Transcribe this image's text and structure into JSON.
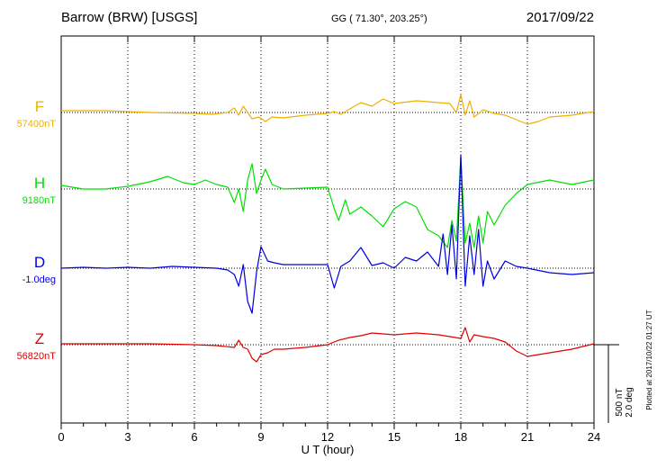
{
  "header": {
    "station": "Barrow (BRW)  [USGS]",
    "coords": "GG ( 71.30°, 203.25°)",
    "date": "2017/09/22"
  },
  "footer": {
    "plotted": "Plotted at 2017/10/22 01:27 UT"
  },
  "colors": {
    "F": "#f0b000",
    "H": "#00e000",
    "D": "#0000dd",
    "Z": "#e00000"
  },
  "chart_data": {
    "type": "line",
    "xlabel": "U T (hour)",
    "xlim": [
      0,
      24
    ],
    "x_ticks": [
      0,
      3,
      6,
      9,
      12,
      15,
      18,
      21,
      24
    ],
    "scale": {
      "nt": "500 nT",
      "deg": "2.0 deg"
    },
    "grid": true,
    "series": [
      {
        "name": "F",
        "base": "57400nT",
        "points": [
          [
            0,
            123
          ],
          [
            2,
            123
          ],
          [
            4,
            125
          ],
          [
            6,
            126
          ],
          [
            6.8,
            127
          ],
          [
            7.5,
            125
          ],
          [
            7.8,
            120
          ],
          [
            8,
            128
          ],
          [
            8.2,
            118
          ],
          [
            8.4,
            125
          ],
          [
            8.6,
            132
          ],
          [
            8.9,
            130
          ],
          [
            9.2,
            135
          ],
          [
            9.5,
            130
          ],
          [
            10,
            131
          ],
          [
            11,
            128
          ],
          [
            12,
            126
          ],
          [
            12.3,
            124
          ],
          [
            12.6,
            127
          ],
          [
            13,
            121
          ],
          [
            13.5,
            114
          ],
          [
            14,
            118
          ],
          [
            14.5,
            110
          ],
          [
            15,
            115
          ],
          [
            16,
            112
          ],
          [
            17,
            114
          ],
          [
            17.5,
            115
          ],
          [
            17.8,
            125
          ],
          [
            18,
            105
          ],
          [
            18.2,
            128
          ],
          [
            18.4,
            112
          ],
          [
            18.6,
            130
          ],
          [
            19,
            122
          ],
          [
            19.5,
            126
          ],
          [
            20,
            128
          ],
          [
            20.5,
            133
          ],
          [
            21,
            138
          ],
          [
            21.5,
            135
          ],
          [
            22,
            130
          ],
          [
            23,
            128
          ],
          [
            24,
            124
          ]
        ]
      },
      {
        "name": "H",
        "base": "9180nT",
        "points": [
          [
            0,
            206
          ],
          [
            1,
            210
          ],
          [
            2,
            210
          ],
          [
            3,
            207
          ],
          [
            4,
            202
          ],
          [
            4.8,
            196
          ],
          [
            5.5,
            203
          ],
          [
            6,
            205
          ],
          [
            6.5,
            200
          ],
          [
            7,
            205
          ],
          [
            7.5,
            208
          ],
          [
            7.8,
            225
          ],
          [
            8,
            210
          ],
          [
            8.2,
            235
          ],
          [
            8.4,
            200
          ],
          [
            8.6,
            182
          ],
          [
            8.8,
            215
          ],
          [
            9,
            200
          ],
          [
            9.2,
            188
          ],
          [
            9.5,
            205
          ],
          [
            10,
            210
          ],
          [
            11,
            209
          ],
          [
            12,
            208
          ],
          [
            12.3,
            232
          ],
          [
            12.5,
            245
          ],
          [
            12.8,
            222
          ],
          [
            13,
            238
          ],
          [
            13.5,
            230
          ],
          [
            14,
            240
          ],
          [
            14.5,
            252
          ],
          [
            15,
            232
          ],
          [
            15.5,
            224
          ],
          [
            16,
            230
          ],
          [
            16.5,
            255
          ],
          [
            17,
            262
          ],
          [
            17.4,
            275
          ],
          [
            17.6,
            245
          ],
          [
            17.8,
            268
          ],
          [
            18,
            175
          ],
          [
            18.2,
            270
          ],
          [
            18.4,
            248
          ],
          [
            18.6,
            275
          ],
          [
            18.8,
            240
          ],
          [
            19,
            270
          ],
          [
            19.2,
            235
          ],
          [
            19.5,
            250
          ],
          [
            20,
            228
          ],
          [
            20.5,
            215
          ],
          [
            21,
            205
          ],
          [
            22,
            200
          ],
          [
            23,
            205
          ],
          [
            24,
            200
          ]
        ]
      },
      {
        "name": "D",
        "base": "-1.0deg",
        "points": [
          [
            0,
            298
          ],
          [
            1,
            297
          ],
          [
            2,
            298
          ],
          [
            3,
            297
          ],
          [
            4,
            298
          ],
          [
            5,
            296
          ],
          [
            6,
            297
          ],
          [
            7,
            298
          ],
          [
            7.5,
            300
          ],
          [
            7.8,
            305
          ],
          [
            8,
            318
          ],
          [
            8.2,
            294
          ],
          [
            8.4,
            335
          ],
          [
            8.6,
            348
          ],
          [
            8.8,
            302
          ],
          [
            9,
            274
          ],
          [
            9.3,
            290
          ],
          [
            9.6,
            292
          ],
          [
            10,
            294
          ],
          [
            11,
            294
          ],
          [
            12,
            294
          ],
          [
            12.3,
            320
          ],
          [
            12.6,
            296
          ],
          [
            13,
            290
          ],
          [
            13.5,
            275
          ],
          [
            14,
            295
          ],
          [
            14.5,
            292
          ],
          [
            15,
            298
          ],
          [
            15.5,
            286
          ],
          [
            16,
            290
          ],
          [
            16.5,
            280
          ],
          [
            17,
            296
          ],
          [
            17.2,
            260
          ],
          [
            17.4,
            305
          ],
          [
            17.6,
            250
          ],
          [
            17.8,
            310
          ],
          [
            18,
            172
          ],
          [
            18.2,
            318
          ],
          [
            18.4,
            262
          ],
          [
            18.6,
            305
          ],
          [
            18.8,
            255
          ],
          [
            19,
            318
          ],
          [
            19.2,
            290
          ],
          [
            19.5,
            310
          ],
          [
            20,
            290
          ],
          [
            20.5,
            296
          ],
          [
            21,
            298
          ],
          [
            22,
            303
          ],
          [
            23,
            305
          ],
          [
            24,
            303
          ]
        ]
      },
      {
        "name": "Z",
        "base": "56820nT",
        "points": [
          [
            0,
            382
          ],
          [
            2,
            382
          ],
          [
            4,
            382
          ],
          [
            6,
            383
          ],
          [
            7,
            384
          ],
          [
            7.8,
            386
          ],
          [
            8,
            378
          ],
          [
            8.2,
            386
          ],
          [
            8.4,
            388
          ],
          [
            8.6,
            398
          ],
          [
            8.8,
            402
          ],
          [
            9,
            394
          ],
          [
            9.3,
            392
          ],
          [
            9.6,
            388
          ],
          [
            10,
            388
          ],
          [
            11,
            386
          ],
          [
            12,
            383
          ],
          [
            12.5,
            378
          ],
          [
            13,
            375
          ],
          [
            13.5,
            373
          ],
          [
            14,
            370
          ],
          [
            15,
            372
          ],
          [
            16,
            370
          ],
          [
            17,
            372
          ],
          [
            17.5,
            374
          ],
          [
            18,
            376
          ],
          [
            18.2,
            364
          ],
          [
            18.4,
            380
          ],
          [
            18.6,
            372
          ],
          [
            19,
            374
          ],
          [
            19.5,
            376
          ],
          [
            20,
            380
          ],
          [
            20.5,
            390
          ],
          [
            21,
            396
          ],
          [
            22,
            392
          ],
          [
            23,
            388
          ],
          [
            24,
            382
          ]
        ]
      }
    ]
  }
}
